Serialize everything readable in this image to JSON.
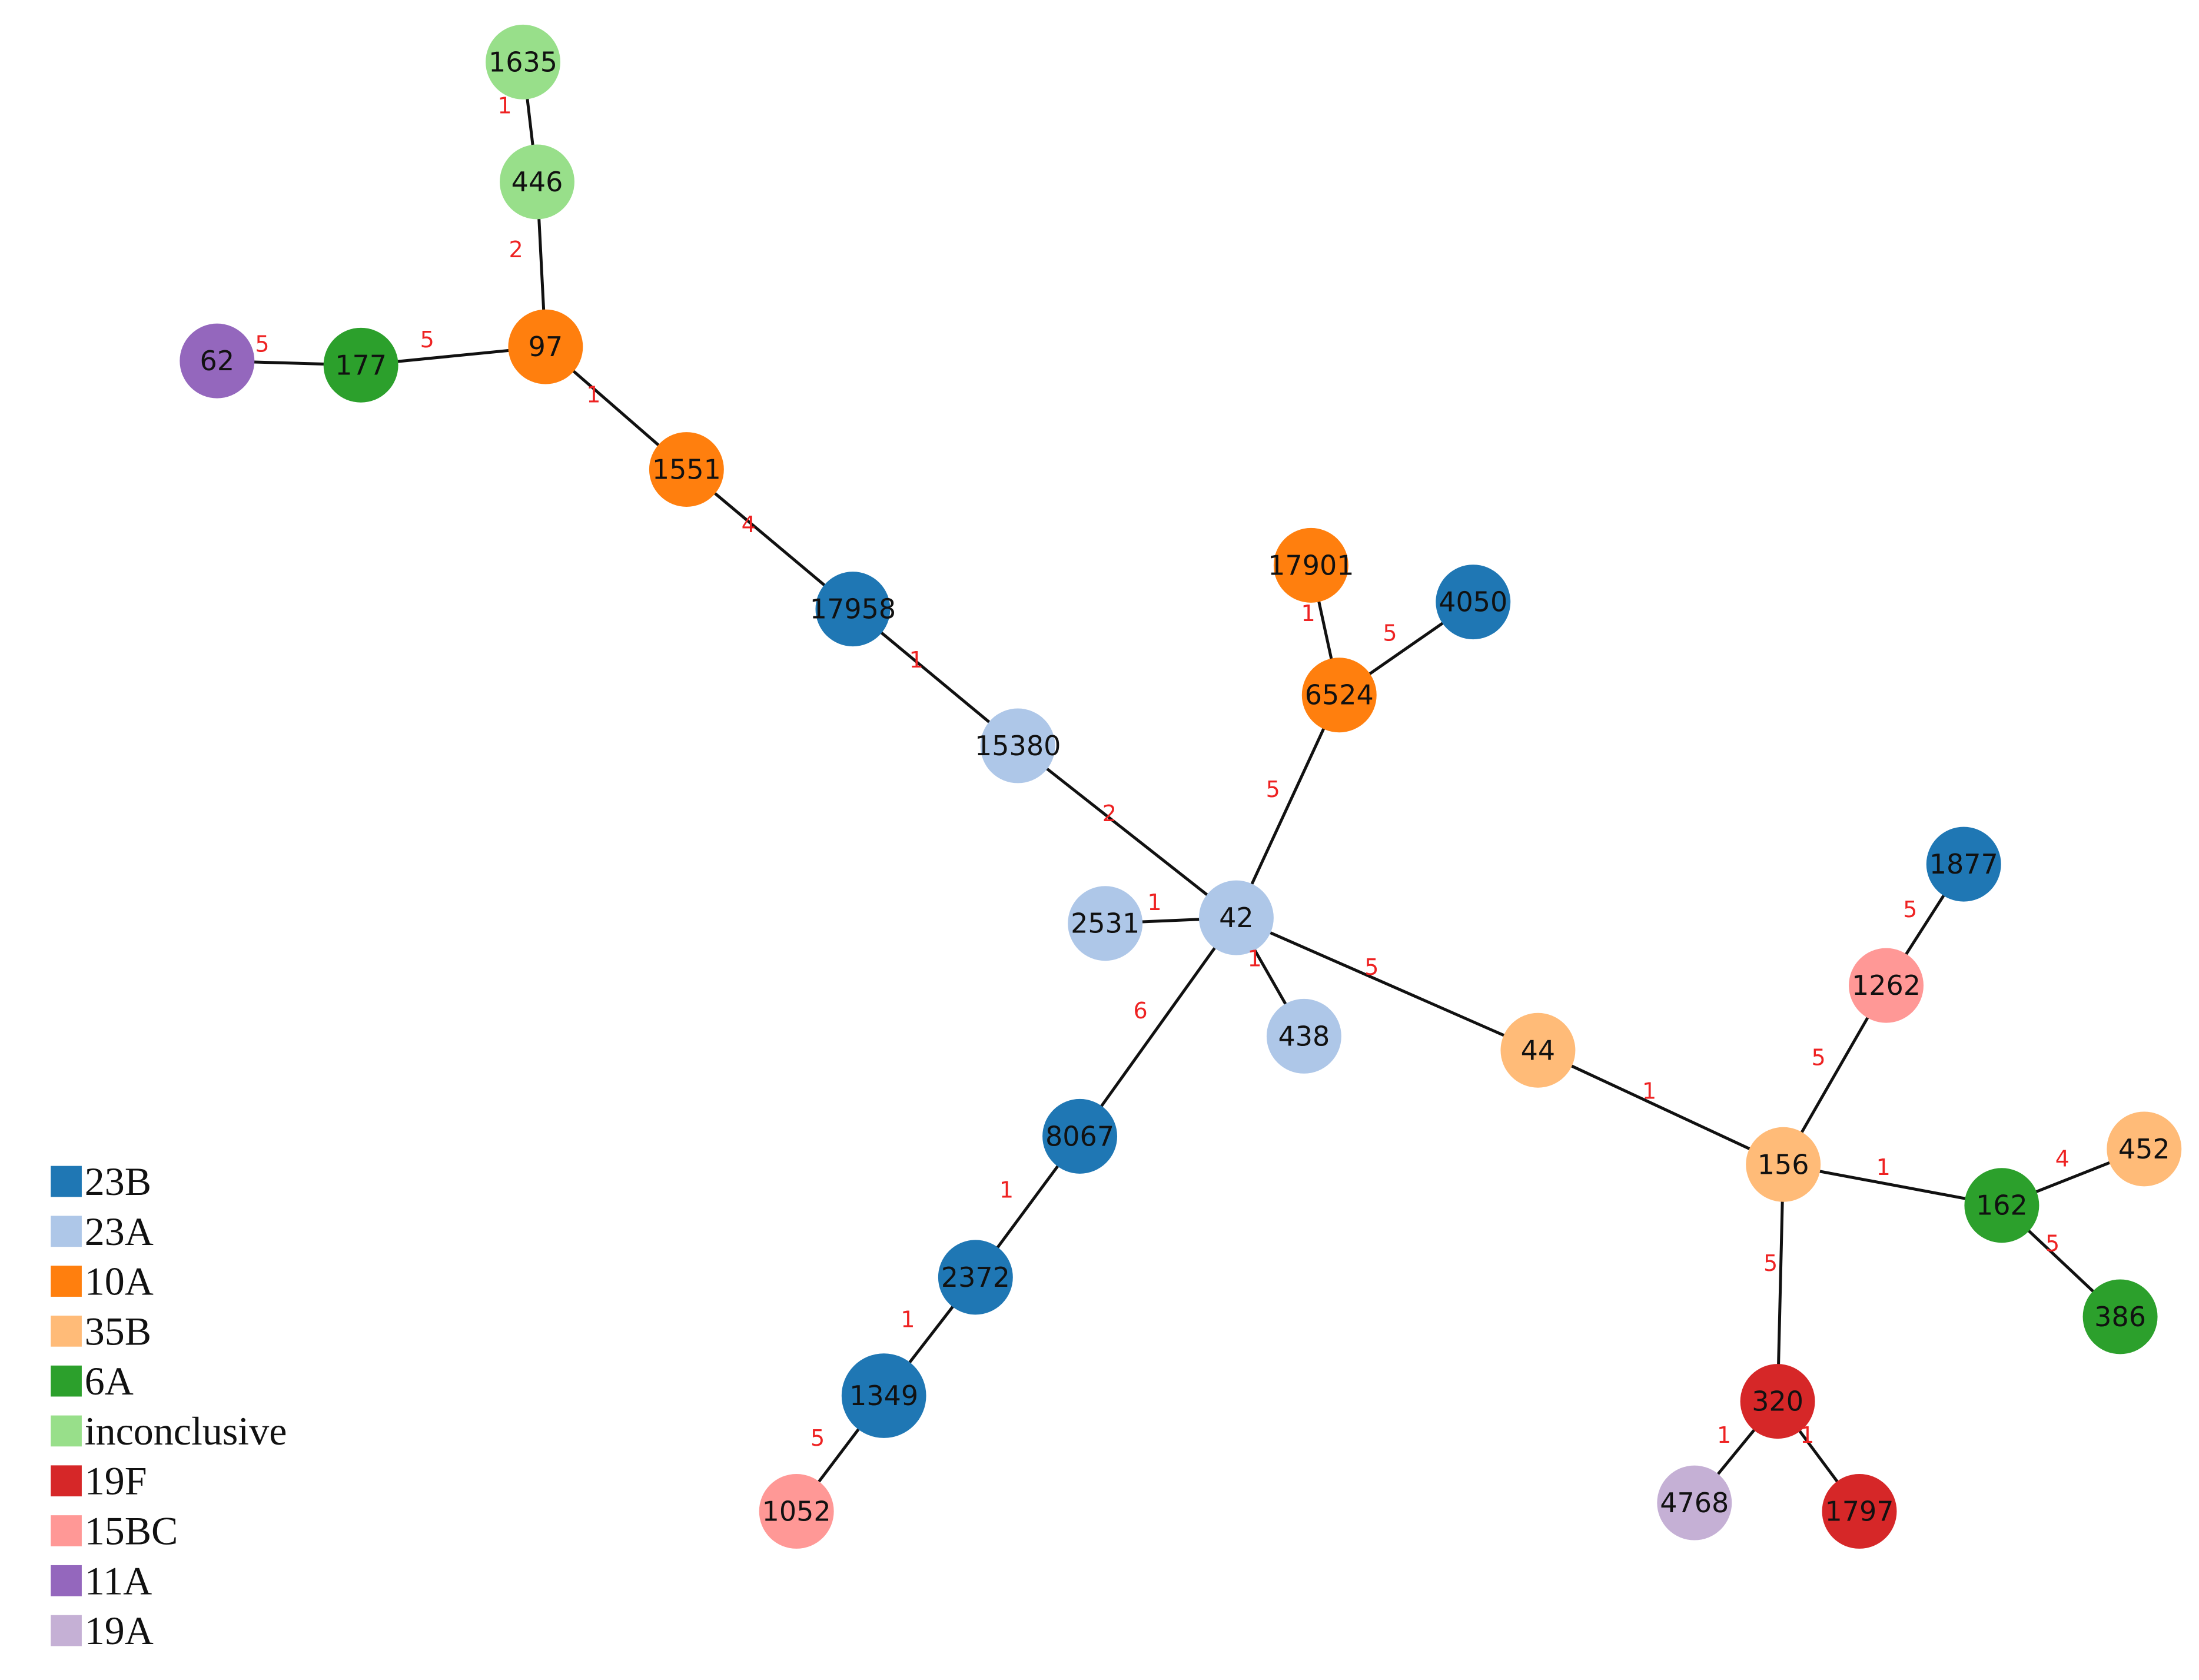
{
  "legend": [
    {
      "name": "23B",
      "color": "#1f77b4"
    },
    {
      "name": "23A",
      "color": "#aec7e8"
    },
    {
      "name": "10A",
      "color": "#ff7f0e"
    },
    {
      "name": "35B",
      "color": "#ffbb78"
    },
    {
      "name": "6A",
      "color": "#2ca02c"
    },
    {
      "name": "inconclusive",
      "color": "#98df8a"
    },
    {
      "name": "19F",
      "color": "#d62728"
    },
    {
      "name": "15BC",
      "color": "#ff9896"
    },
    {
      "name": "11A",
      "color": "#9467bd"
    },
    {
      "name": "19A",
      "color": "#c5b0d5"
    }
  ],
  "nodes": [
    {
      "label": "1635",
      "group": "inconclusive"
    },
    {
      "label": "446",
      "group": "inconclusive"
    },
    {
      "label": "97",
      "group": "10A"
    },
    {
      "label": "177",
      "group": "6A"
    },
    {
      "label": "62",
      "group": "11A"
    },
    {
      "label": "1551",
      "group": "10A"
    },
    {
      "label": "17958",
      "group": "23B"
    },
    {
      "label": "15380",
      "group": "23A"
    },
    {
      "label": "42",
      "group": "23A"
    },
    {
      "label": "2531",
      "group": "23A"
    },
    {
      "label": "438",
      "group": "23A"
    },
    {
      "label": "6524",
      "group": "10A"
    },
    {
      "label": "17901",
      "group": "10A"
    },
    {
      "label": "4050",
      "group": "23B"
    },
    {
      "label": "8067",
      "group": "23B"
    },
    {
      "label": "2372",
      "group": "23B"
    },
    {
      "label": "1349",
      "group": "23B"
    },
    {
      "label": "1052",
      "group": "15BC"
    },
    {
      "label": "44",
      "group": "35B"
    },
    {
      "label": "156",
      "group": "35B"
    },
    {
      "label": "1262",
      "group": "15BC"
    },
    {
      "label": "1877",
      "group": "23B"
    },
    {
      "label": "162",
      "group": "6A"
    },
    {
      "label": "452",
      "group": "35B"
    },
    {
      "label": "386",
      "group": "6A"
    },
    {
      "label": "320",
      "group": "19F"
    },
    {
      "label": "4768",
      "group": "19A"
    },
    {
      "label": "1797",
      "group": "19F"
    }
  ],
  "edges": [
    {
      "source": "1635",
      "target": "446",
      "weight": 1
    },
    {
      "source": "446",
      "target": "97",
      "weight": 2
    },
    {
      "source": "97",
      "target": "177",
      "weight": 5
    },
    {
      "source": "177",
      "target": "62",
      "weight": 5
    },
    {
      "source": "97",
      "target": "1551",
      "weight": 1
    },
    {
      "source": "1551",
      "target": "17958",
      "weight": 4
    },
    {
      "source": "17958",
      "target": "15380",
      "weight": 1
    },
    {
      "source": "15380",
      "target": "42",
      "weight": 2
    },
    {
      "source": "42",
      "target": "2531",
      "weight": 1
    },
    {
      "source": "42",
      "target": "438",
      "weight": 1
    },
    {
      "source": "42",
      "target": "6524",
      "weight": 5
    },
    {
      "source": "6524",
      "target": "17901",
      "weight": 1
    },
    {
      "source": "6524",
      "target": "4050",
      "weight": 5
    },
    {
      "source": "42",
      "target": "8067",
      "weight": 6
    },
    {
      "source": "8067",
      "target": "2372",
      "weight": 1
    },
    {
      "source": "2372",
      "target": "1349",
      "weight": 1
    },
    {
      "source": "1349",
      "target": "1052",
      "weight": 5
    },
    {
      "source": "42",
      "target": "44",
      "weight": 5
    },
    {
      "source": "44",
      "target": "156",
      "weight": 1
    },
    {
      "source": "156",
      "target": "1262",
      "weight": 5
    },
    {
      "source": "1262",
      "target": "1877",
      "weight": 5
    },
    {
      "source": "156",
      "target": "162",
      "weight": 1
    },
    {
      "source": "162",
      "target": "452",
      "weight": 4
    },
    {
      "source": "162",
      "target": "386",
      "weight": 5
    },
    {
      "source": "156",
      "target": "320",
      "weight": 5
    },
    {
      "source": "320",
      "target": "4768",
      "weight": 1
    },
    {
      "source": "320",
      "target": "1797",
      "weight": 1
    }
  ]
}
